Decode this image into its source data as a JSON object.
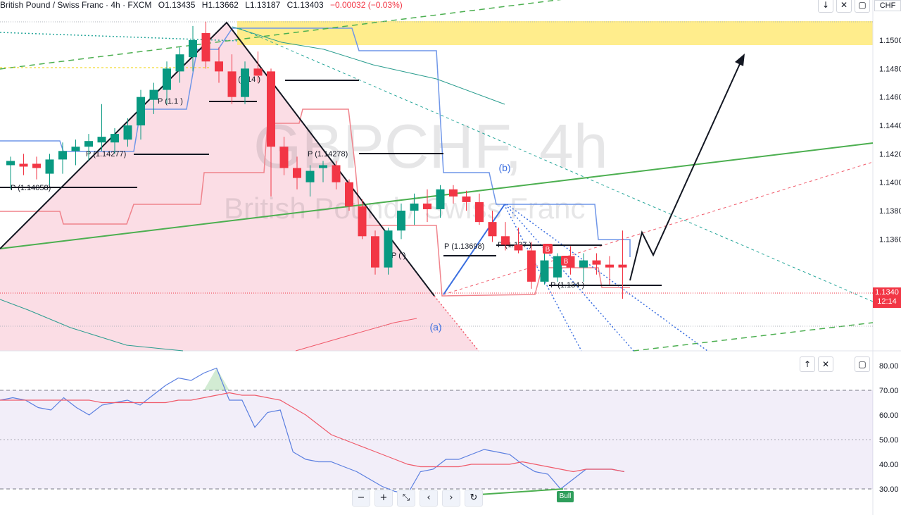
{
  "header": {
    "symbol": "British Pound / Swiss Franc · 4h · FXCM",
    "open": "O1.13435",
    "high": "H1.13662",
    "low": "L1.13187",
    "close": "C1.13403",
    "change": "−0.00032 (−0.03%)"
  },
  "watermark": {
    "title": "GBPCHF, 4h",
    "subtitle": "British Pound / Swiss Franc"
  },
  "currency": "CHF",
  "last_price": {
    "price": "1.1340",
    "timer": "12:14"
  },
  "toolbar_top": {
    "down": "↓",
    "expand": "✕",
    "window": "▢"
  },
  "toolbar_rsi": {
    "up": "↑",
    "close": "✕",
    "window": "▢"
  },
  "nav": {
    "minus": "−",
    "plus": "+",
    "reset_scale": "⤡",
    "left": "‹",
    "right": "›",
    "refresh": "↻"
  },
  "wave_labels": [
    {
      "text": "(b)",
      "x": 717,
      "y": 243
    },
    {
      "text": "(a)",
      "x": 619,
      "y": 469
    }
  ],
  "badges": {
    "bull": "Bull",
    "b1": "B",
    "b2": "B"
  },
  "chart_data": [
    {
      "type": "candlestick",
      "title": "",
      "y_axis": {
        "min": 1.131,
        "max": 1.152,
        "ticks": [
          {
            "value": 1.15,
            "label": "1.1500"
          },
          {
            "value": 1.148,
            "label": "1.1480"
          },
          {
            "value": 1.146,
            "label": "1.1460"
          },
          {
            "value": 1.144,
            "label": "1.1440"
          },
          {
            "value": 1.142,
            "label": "1.1420"
          },
          {
            "value": 1.14,
            "label": "1.1400"
          },
          {
            "value": 1.138,
            "label": "1.1380"
          },
          {
            "value": 1.136,
            "label": "1.1360"
          },
          {
            "value": 1.132,
            "label": "1.1320"
          }
        ]
      },
      "candles": [
        [
          1.1412,
          1.1418,
          1.1395,
          1.1415
        ],
        [
          1.1413,
          1.142,
          1.1405,
          1.1411
        ],
        [
          1.1413,
          1.1418,
          1.1402,
          1.141
        ],
        [
          1.1406,
          1.142,
          1.1398,
          1.1416
        ],
        [
          1.1416,
          1.1428,
          1.1406,
          1.1422
        ],
        [
          1.1422,
          1.143,
          1.1412,
          1.1425
        ],
        [
          1.1425,
          1.1434,
          1.1415,
          1.1429
        ],
        [
          1.1428,
          1.1455,
          1.1422,
          1.1432
        ],
        [
          1.1428,
          1.1438,
          1.142,
          1.1434
        ],
        [
          1.143,
          1.1445,
          1.1425,
          1.144
        ],
        [
          1.144,
          1.1465,
          1.143,
          1.146
        ],
        [
          1.1458,
          1.147,
          1.1448,
          1.1465
        ],
        [
          1.1465,
          1.1485,
          1.1455,
          1.148
        ],
        [
          1.1478,
          1.1495,
          1.147,
          1.149
        ],
        [
          1.1488,
          1.151,
          1.1478,
          1.15
        ],
        [
          1.1505,
          1.1513,
          1.148,
          1.1485
        ],
        [
          1.1485,
          1.1495,
          1.147,
          1.1478
        ],
        [
          1.1478,
          1.149,
          1.1455,
          1.146
        ],
        [
          1.146,
          1.1485,
          1.1455,
          1.148
        ],
        [
          1.148,
          1.1492,
          1.147,
          1.1475
        ],
        [
          1.1478,
          1.148,
          1.139,
          1.1425
        ],
        [
          1.1425,
          1.1432,
          1.1405,
          1.141
        ],
        [
          1.141,
          1.1418,
          1.1395,
          1.1403
        ],
        [
          1.14,
          1.1412,
          1.139,
          1.1408
        ],
        [
          1.141,
          1.1415,
          1.14,
          1.1412
        ],
        [
          1.1412,
          1.1415,
          1.1395,
          1.14
        ],
        [
          1.14,
          1.1402,
          1.138,
          1.1383
        ],
        [
          1.1383,
          1.1388,
          1.136,
          1.1362
        ],
        [
          1.1362,
          1.1366,
          1.1335,
          1.134
        ],
        [
          1.134,
          1.1368,
          1.1335,
          1.1366
        ],
        [
          1.1366,
          1.1385,
          1.136,
          1.138
        ],
        [
          1.138,
          1.1392,
          1.137,
          1.1385
        ],
        [
          1.1385,
          1.1395,
          1.1372,
          1.1381
        ],
        [
          1.1381,
          1.1398,
          1.1375,
          1.1395
        ],
        [
          1.1395,
          1.1398,
          1.1385,
          1.139
        ],
        [
          1.139,
          1.1394,
          1.138,
          1.1386
        ],
        [
          1.1386,
          1.1392,
          1.137,
          1.1372
        ],
        [
          1.1372,
          1.138,
          1.1358,
          1.1362
        ],
        [
          1.1362,
          1.1372,
          1.1352,
          1.1356
        ],
        [
          1.1356,
          1.1368,
          1.135,
          1.1352
        ],
        [
          1.1352,
          1.1358,
          1.1325,
          1.133
        ],
        [
          1.133,
          1.135,
          1.1328,
          1.1345
        ],
        [
          1.1333,
          1.135,
          1.133,
          1.1348
        ],
        [
          1.1348,
          1.1355,
          1.1335,
          1.134
        ],
        [
          1.134,
          1.135,
          1.133,
          1.1345
        ],
        [
          1.1345,
          1.135,
          1.1335,
          1.1342
        ],
        [
          1.1342,
          1.1348,
          1.1328,
          1.134
        ],
        [
          1.1342,
          1.1366,
          1.1318,
          1.134
        ]
      ],
      "pivots": [
        {
          "label": "P (1.14058)"
        },
        {
          "label": "P (1.14277)"
        },
        {
          "label": "P (1.14 )"
        },
        {
          "label": "P (1.1 )"
        },
        {
          "label": "P (1.14278)"
        },
        {
          "label": "P ( )"
        },
        {
          "label": "P (1.13698)"
        },
        {
          "label": "P (1.137 )"
        },
        {
          "label": "P (1.134 )"
        }
      ]
    },
    {
      "type": "line",
      "title": "",
      "y_axis": {
        "min": 27,
        "max": 82,
        "ticks": [
          {
            "value": 80,
            "label": "80.00"
          },
          {
            "value": 70,
            "label": "70.00"
          },
          {
            "value": 60,
            "label": "60.00"
          },
          {
            "value": 50,
            "label": "50.00"
          },
          {
            "value": 40,
            "label": "40.00"
          },
          {
            "value": 30,
            "label": "30.00"
          }
        ]
      },
      "band": [
        30,
        70
      ],
      "series": [
        {
          "values": [
            66,
            67,
            66,
            63,
            62,
            67,
            63,
            60,
            64,
            65,
            66,
            64,
            68,
            72,
            75,
            74,
            77,
            79,
            66,
            66,
            55,
            61,
            62,
            45,
            42,
            41,
            41,
            39,
            37,
            34,
            31,
            29,
            28,
            37,
            38,
            42,
            42,
            44,
            46,
            45,
            44,
            40,
            37,
            36,
            30,
            34,
            38,
            38,
            38,
            37
          ]
        },
        {
          "values": [
            66,
            66,
            66,
            66,
            66,
            66,
            66,
            66,
            65,
            65,
            65,
            65,
            65,
            65,
            66,
            66,
            67,
            68,
            69,
            68,
            68,
            67,
            66,
            63,
            60,
            56,
            52,
            50,
            48,
            46,
            44,
            42,
            40,
            39,
            39,
            39,
            39,
            40,
            40,
            40,
            40,
            41,
            40,
            39,
            38,
            37,
            38,
            38,
            38,
            37
          ]
        }
      ]
    }
  ]
}
